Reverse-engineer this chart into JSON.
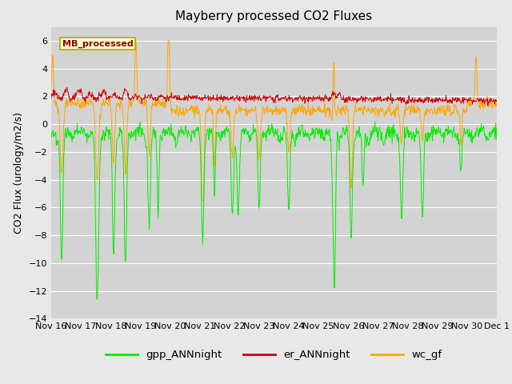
{
  "title": "Mayberry processed CO2 Fluxes",
  "ylabel": "CO2 Flux (urology/m2/s)",
  "background_color": "#e8e8e8",
  "plot_bg_color": "#d3d3d3",
  "ylim": [
    -14,
    7
  ],
  "yticks": [
    -14,
    -12,
    -10,
    -8,
    -6,
    -4,
    -2,
    0,
    2,
    4,
    6
  ],
  "legend_labels": [
    "gpp_ANNnight",
    "er_ANNnight",
    "wc_gf"
  ],
  "legend_colors": [
    "#00ee00",
    "#cc0000",
    "#ffa500"
  ],
  "line_colors": {
    "gpp": "#00ee00",
    "er": "#cc0000",
    "wc": "#ffa500"
  },
  "box_label": "MB_processed",
  "box_facecolor": "#ffffcc",
  "box_edgecolor": "#aaaa00",
  "box_textcolor": "#880000",
  "title_fontsize": 11,
  "label_fontsize": 9,
  "tick_fontsize": 8
}
